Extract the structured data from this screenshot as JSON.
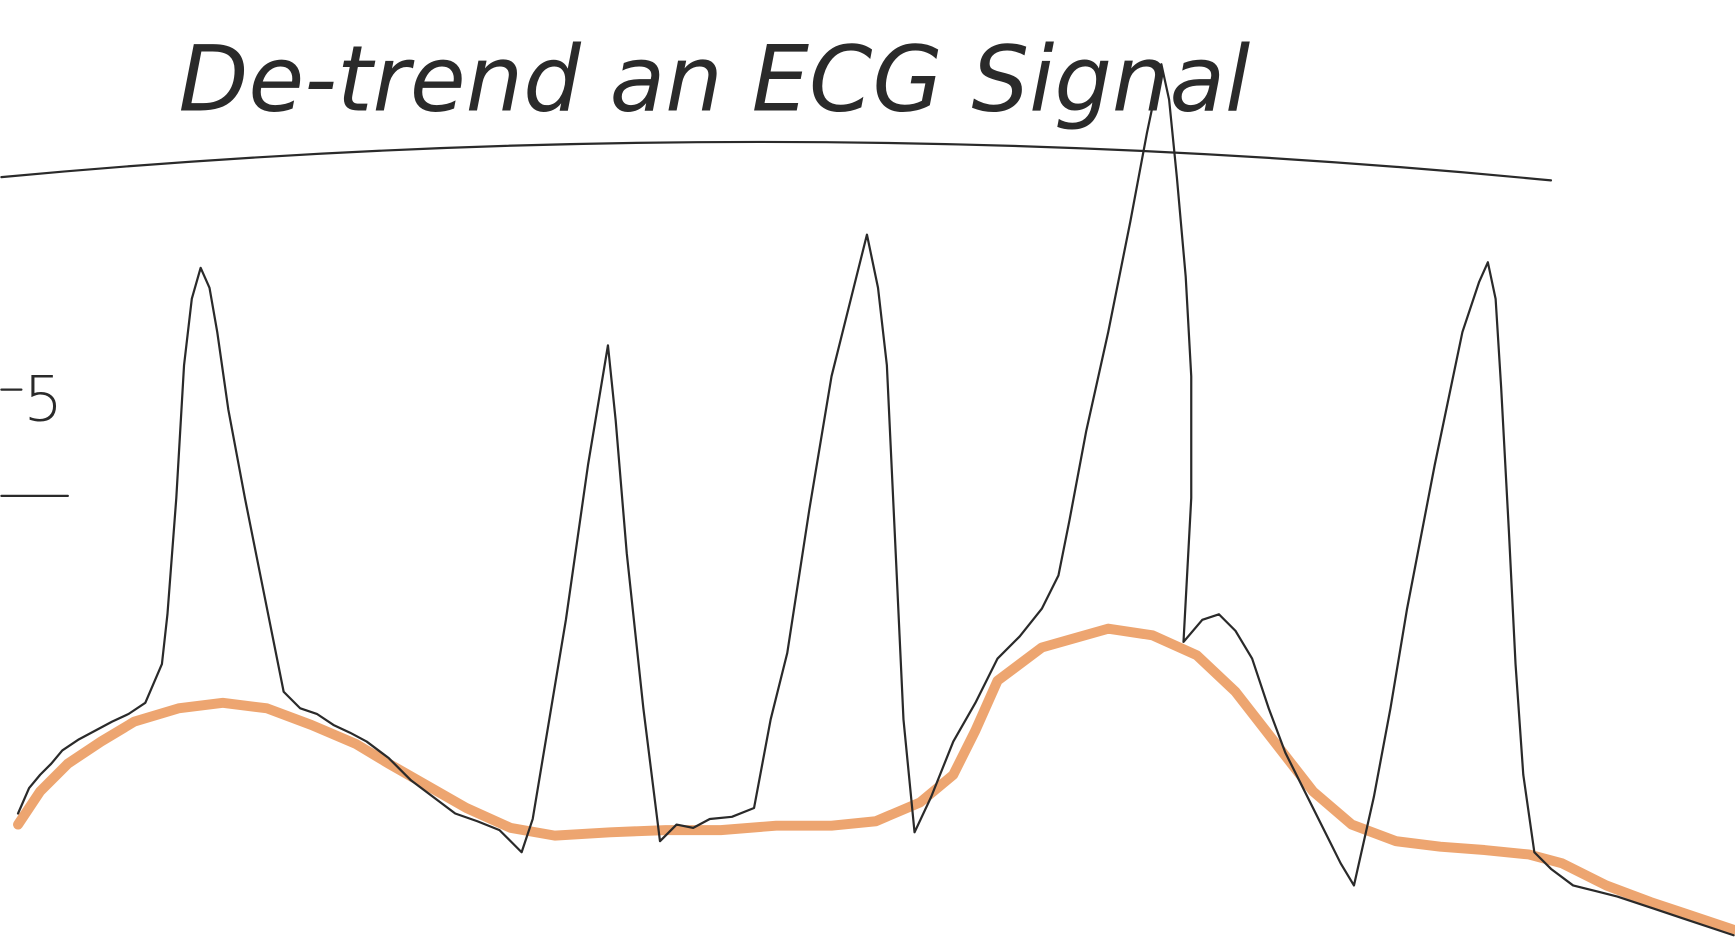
{
  "title": "De-trend an ECG Signal",
  "side_label": "5"
}
